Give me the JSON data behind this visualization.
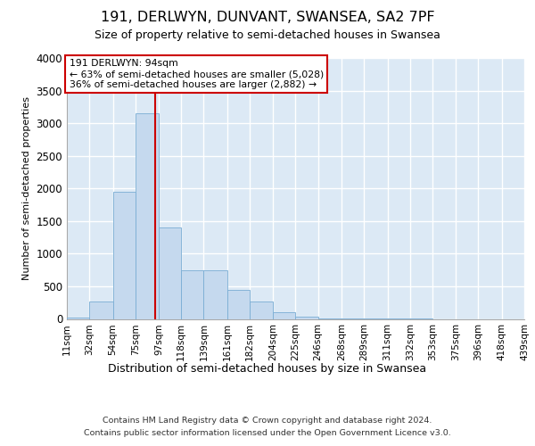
{
  "title": "191, DERLWYN, DUNVANT, SWANSEA, SA2 7PF",
  "subtitle": "Size of property relative to semi-detached houses in Swansea",
  "xlabel": "Distribution of semi-detached houses by size in Swansea",
  "ylabel": "Number of semi-detached properties",
  "footer_line1": "Contains HM Land Registry data © Crown copyright and database right 2024.",
  "footer_line2": "Contains public sector information licensed under the Open Government Licence v3.0.",
  "annotation_title": "191 DERLWYN: 94sqm",
  "annotation_line1": "← 63% of semi-detached houses are smaller (5,028)",
  "annotation_line2": "36% of semi-detached houses are larger (2,882) →",
  "property_size": 94,
  "bar_color": "#c5d9ee",
  "bar_edge_color": "#7aadd4",
  "vline_color": "#cc0000",
  "annotation_box_color": "#cc0000",
  "background_color": "#dce9f5",
  "bins": [
    11,
    32,
    54,
    75,
    97,
    118,
    139,
    161,
    182,
    204,
    225,
    246,
    268,
    289,
    311,
    332,
    353,
    375,
    396,
    418,
    439
  ],
  "counts": [
    20,
    260,
    1950,
    3150,
    1400,
    750,
    750,
    450,
    260,
    100,
    30,
    10,
    5,
    2,
    1,
    1,
    0,
    0,
    0,
    0
  ],
  "ylim": [
    0,
    4000
  ],
  "yticks": [
    0,
    500,
    1000,
    1500,
    2000,
    2500,
    3000,
    3500,
    4000
  ]
}
